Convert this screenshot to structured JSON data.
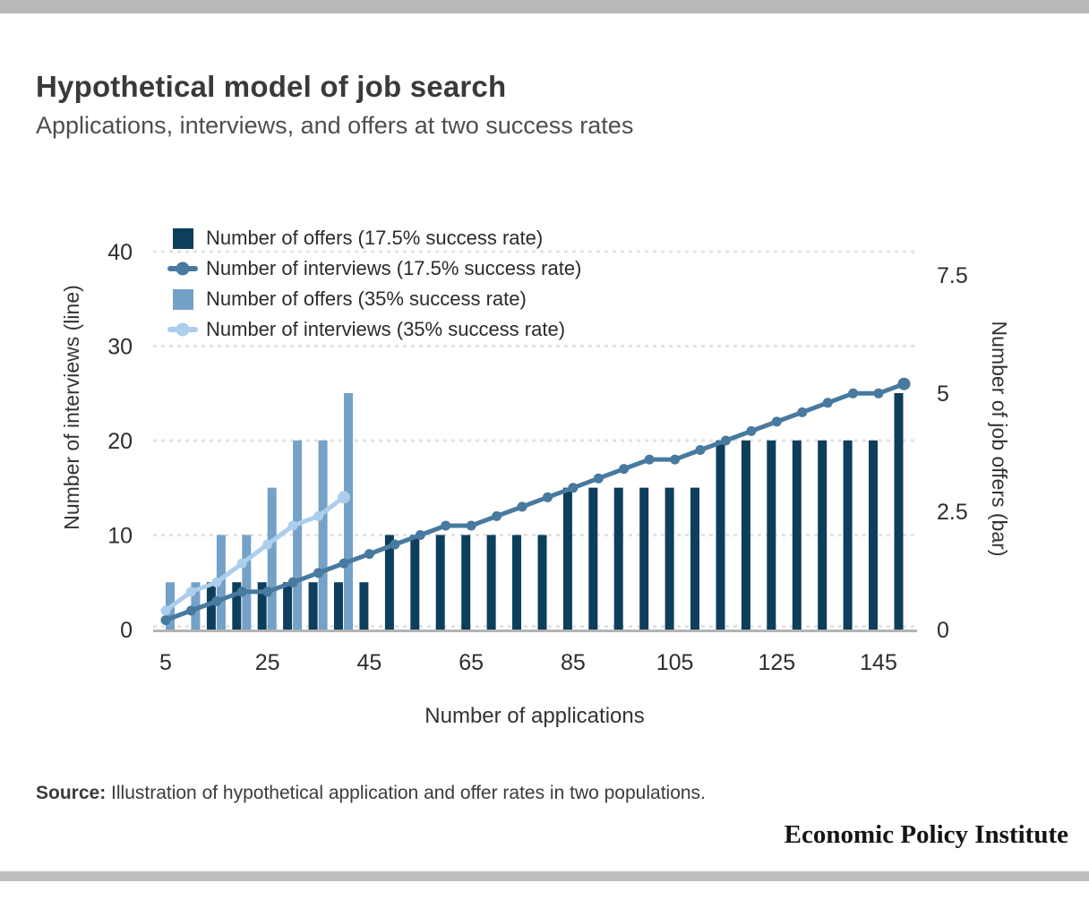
{
  "page": {
    "title": "Hypothetical model of job search",
    "subtitle": "Applications, interviews, and offers at two success rates",
    "source_label": "Source:",
    "source_text": " Illustration of hypothetical application and offer rates in two populations.",
    "brand": "Economic Policy Institute"
  },
  "colors": {
    "offers_175": "#0d3e5c",
    "interviews_175": "#48799e",
    "offers_35": "#74a1c7",
    "interviews_35": "#accdec",
    "gridline": "#e3e3e3",
    "baseline": "#b3b3b3",
    "top_bar": "#b9b9b9",
    "bottom_bar": "#bdbdbd"
  },
  "legend": [
    {
      "label": "Number of offers (17.5% success rate)",
      "swatch": "bar",
      "color_key": "offers_175"
    },
    {
      "label": "Number of interviews (17.5% success rate)",
      "swatch": "line",
      "color_key": "interviews_175"
    },
    {
      "label": "Number of offers (35% success rate)",
      "swatch": "bar",
      "color_key": "offers_35"
    },
    {
      "label": "Number of interviews (35% success rate)",
      "swatch": "line",
      "color_key": "interviews_35"
    }
  ],
  "chart_data": {
    "type": "bar",
    "subtype": "dual-axis combo: stepped bars (job offers, right axis) + dot-marked lines (interviews, left axis)",
    "title": "Hypothetical model of job search",
    "xlabel": "Number of applications",
    "x": [
      5,
      10,
      15,
      20,
      25,
      30,
      35,
      40,
      45,
      50,
      55,
      60,
      65,
      70,
      75,
      80,
      85,
      90,
      95,
      100,
      105,
      110,
      115,
      120,
      125,
      130,
      135,
      140,
      145,
      150
    ],
    "x_ticks": [
      5,
      25,
      45,
      65,
      85,
      105,
      125,
      145
    ],
    "left_axis": {
      "label": "Number of interviews (line)",
      "ticks": [
        0,
        10,
        20,
        30,
        40
      ],
      "range": [
        0,
        40
      ],
      "gridlines": "dotted"
    },
    "right_axis": {
      "label": "Number of job offers (bar)",
      "ticks": [
        0,
        2.5,
        5,
        7.5
      ],
      "range": [
        0,
        8
      ]
    },
    "series": [
      {
        "name": "Number of offers (17.5% success rate)",
        "kind": "bar",
        "axis": "right",
        "color_key": "offers_175",
        "x": [
          5,
          10,
          15,
          20,
          25,
          30,
          35,
          40,
          45,
          50,
          55,
          60,
          65,
          70,
          75,
          80,
          85,
          90,
          95,
          100,
          105,
          110,
          115,
          120,
          125,
          130,
          135,
          140,
          145,
          150
        ],
        "values": [
          0,
          0,
          1,
          1,
          1,
          1,
          1,
          1,
          1,
          2,
          2,
          2,
          2,
          2,
          2,
          2,
          3,
          3,
          3,
          3,
          3,
          3,
          4,
          4,
          4,
          4,
          4,
          4,
          4,
          5
        ]
      },
      {
        "name": "Number of interviews (17.5% success rate)",
        "kind": "line",
        "axis": "left",
        "color_key": "interviews_175",
        "x": [
          5,
          10,
          15,
          20,
          25,
          30,
          35,
          40,
          45,
          50,
          55,
          60,
          65,
          70,
          75,
          80,
          85,
          90,
          95,
          100,
          105,
          110,
          115,
          120,
          125,
          130,
          135,
          140,
          145,
          150
        ],
        "values": [
          1,
          2,
          3,
          4,
          4,
          5,
          6,
          7,
          8,
          9,
          10,
          11,
          11,
          12,
          13,
          14,
          15,
          16,
          17,
          18,
          18,
          19,
          20,
          21,
          22,
          23,
          24,
          25,
          25,
          26
        ]
      },
      {
        "name": "Number of offers (35% success rate)",
        "kind": "bar",
        "axis": "right",
        "color_key": "offers_35",
        "x": [
          5,
          10,
          15,
          20,
          25,
          30,
          35,
          40
        ],
        "values": [
          1,
          1,
          2,
          2,
          3,
          4,
          4,
          5
        ]
      },
      {
        "name": "Number of interviews (35% success rate)",
        "kind": "line",
        "axis": "left",
        "color_key": "interviews_35",
        "x": [
          5,
          10,
          15,
          20,
          25,
          30,
          35,
          40
        ],
        "values": [
          2,
          4,
          5,
          7,
          9,
          11,
          12,
          14
        ]
      }
    ]
  }
}
